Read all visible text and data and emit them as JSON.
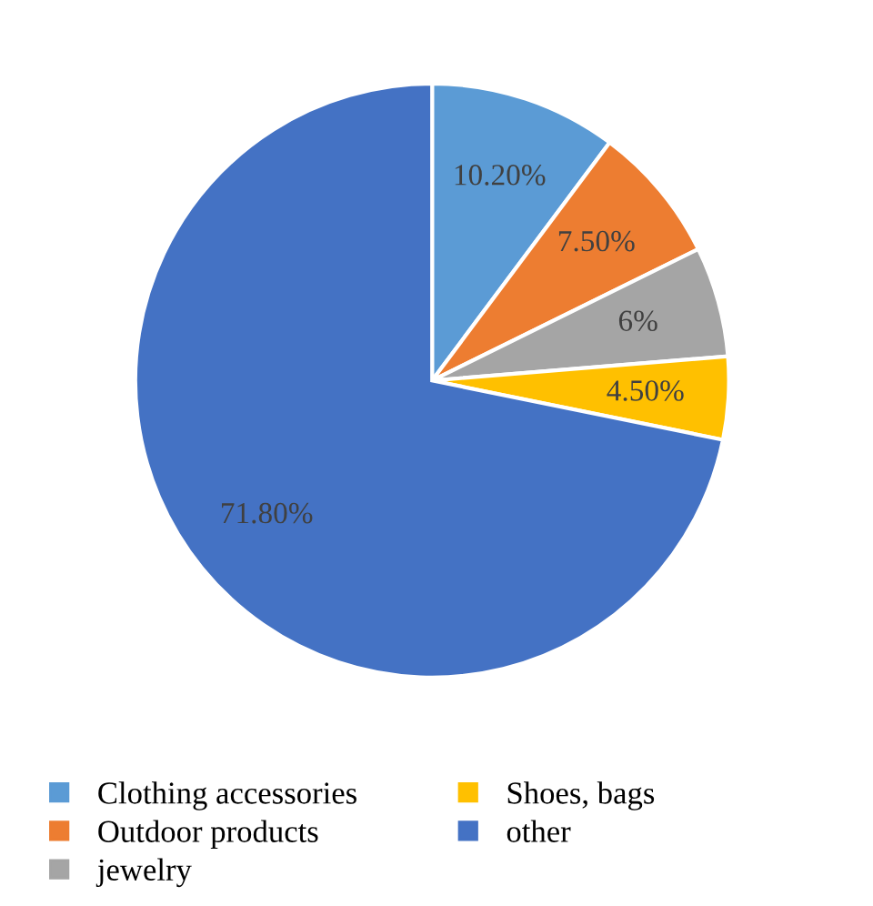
{
  "chart_data": {
    "type": "pie",
    "categories": [
      "Clothing accessories",
      "Outdoor products",
      "jewelry",
      "Shoes, bags",
      "other"
    ],
    "values": [
      10.2,
      7.5,
      6,
      4.5,
      71.8
    ],
    "value_labels": [
      "10.20%",
      "7.50%",
      "6%",
      "4.50%",
      "71.80%"
    ],
    "colors": [
      "#5b9bd5",
      "#ed7d31",
      "#a5a5a5",
      "#ffc000",
      "#4472c4"
    ],
    "legend": "bottom"
  }
}
